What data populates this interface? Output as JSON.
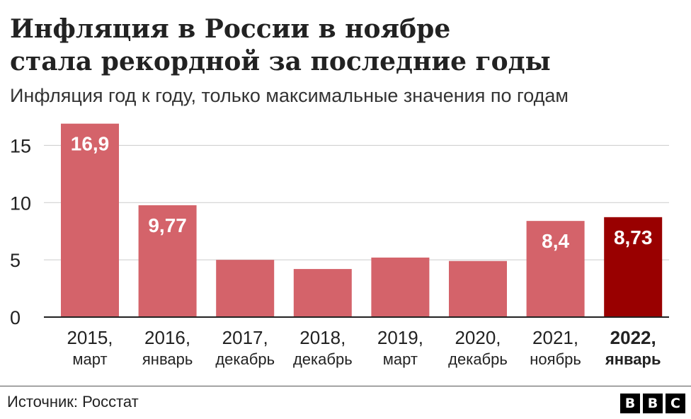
{
  "title_lines": [
    "Инфляция в России в ноябре",
    "стала рекордной за последние годы"
  ],
  "subtitle": "Инфляция год к году, только максимальные значения по годам",
  "source": "Источник: Росстат",
  "logo_letters": [
    "B",
    "B",
    "C"
  ],
  "colors": {
    "bar": "#d4636a",
    "bar_highlight": "#990000",
    "grid": "#cccccc",
    "axis": "#222222",
    "label_light": "#ffffff",
    "text": "#222222"
  },
  "chart_data": {
    "type": "bar",
    "title": "Инфляция в России в ноябре стала рекордной за последние годы",
    "subtitle": "Инфляция год к году, только максимальные значения по годам",
    "categories": [
      {
        "year": "2015,",
        "month": "март"
      },
      {
        "year": "2016,",
        "month": "январь"
      },
      {
        "year": "2017,",
        "month": "декабрь"
      },
      {
        "year": "2018,",
        "month": "декабрь"
      },
      {
        "year": "2019,",
        "month": "март"
      },
      {
        "year": "2020,",
        "month": "декабрь"
      },
      {
        "year": "2021,",
        "month": "ноябрь"
      },
      {
        "year": "2022,",
        "month": "январь"
      }
    ],
    "values": [
      16.9,
      9.77,
      5.0,
      4.2,
      5.2,
      4.9,
      8.4,
      8.73
    ],
    "data_labels": [
      "16,9",
      "9,77",
      "",
      "",
      "",
      "",
      "8,4",
      "8,73"
    ],
    "highlight_index": 7,
    "ylim": [
      0,
      17.5
    ],
    "yticks": [
      0,
      5,
      10,
      15
    ],
    "ytick_labels": [
      "0",
      "5",
      "10",
      "15"
    ],
    "xlabel": "",
    "ylabel": "",
    "grid": true
  }
}
